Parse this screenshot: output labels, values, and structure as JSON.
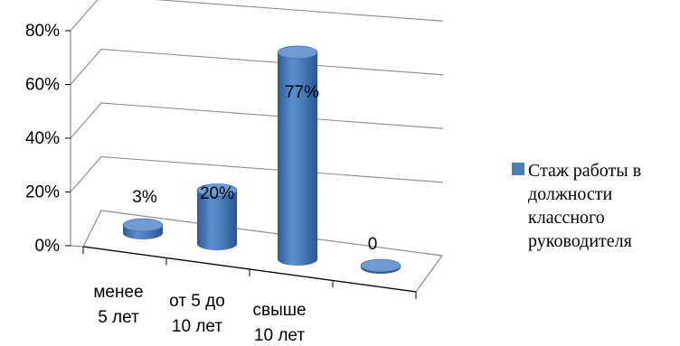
{
  "chart_data": {
    "type": "bar",
    "style": "3d-cylinder",
    "categories": [
      [
        "менее",
        "5 лет"
      ],
      [
        "от 5 до",
        "10 лет"
      ],
      [
        "свыше",
        "10 лет"
      ],
      [
        ""
      ]
    ],
    "series": [
      {
        "name": "Стаж работы в должности классного руководителя",
        "values": [
          3,
          20,
          77,
          0
        ]
      }
    ],
    "data_labels": [
      "3%",
      "20%",
      "77%",
      "0"
    ],
    "yticks": [
      "0%",
      "20%",
      "40%",
      "60%",
      "80%"
    ],
    "ylim": [
      0,
      80
    ],
    "grid": true,
    "legend_position": "right",
    "colors": {
      "series": "#4a7ebb",
      "series_dark": "#2c5d99",
      "series_light": "#6f9bd2",
      "grid": "#8c8c8c"
    }
  },
  "legend": {
    "lines": [
      "Стаж работы в",
      "должности",
      "классного",
      "руководителя"
    ]
  }
}
